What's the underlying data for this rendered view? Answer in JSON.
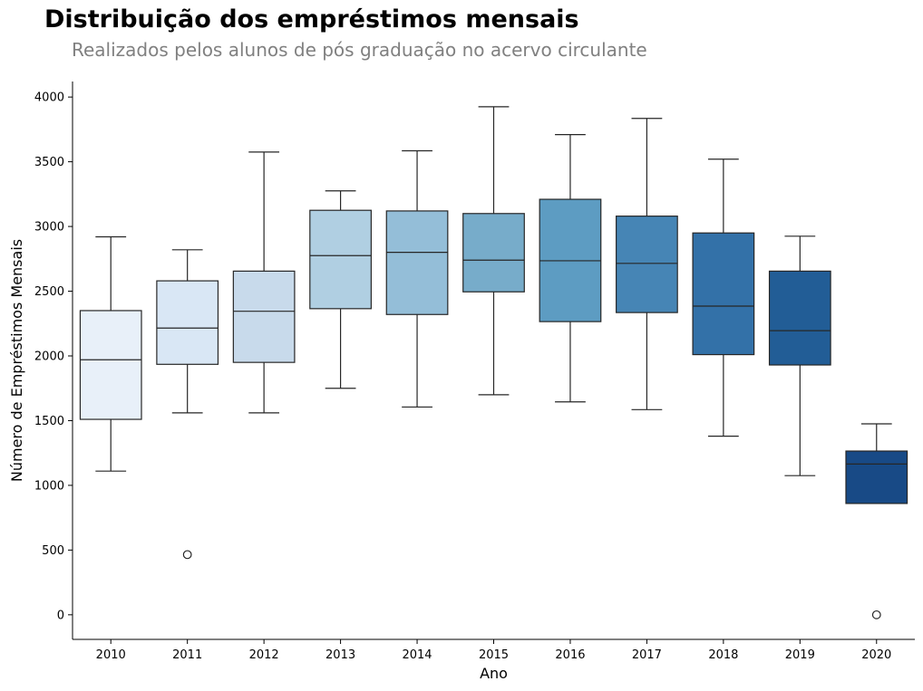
{
  "header": {
    "title": "Distribuição dos empréstimos mensais",
    "subtitle": "Realizados pelos alunos de pós graduação no acervo circulante"
  },
  "chart_data": {
    "type": "box",
    "xlabel": "Ano",
    "ylabel": "Número de Empréstimos Mensais",
    "ylim": [
      -190,
      4120
    ],
    "yticks": [
      0,
      500,
      1000,
      1500,
      2000,
      2500,
      3000,
      3500,
      4000
    ],
    "grid": false,
    "categories": [
      "2010",
      "2011",
      "2012",
      "2013",
      "2014",
      "2015",
      "2016",
      "2017",
      "2018",
      "2019",
      "2020"
    ],
    "boxes": [
      {
        "category": "2010",
        "whisker_low": 1110,
        "q1": 1510,
        "median": 1970,
        "q3": 2350,
        "whisker_high": 2920,
        "outliers": [],
        "color": "#e8f0f9"
      },
      {
        "category": "2011",
        "whisker_low": 1560,
        "q1": 1935,
        "median": 2215,
        "q3": 2580,
        "whisker_high": 2820,
        "outliers": [
          465
        ],
        "color": "#d9e7f5"
      },
      {
        "category": "2012",
        "whisker_low": 1560,
        "q1": 1950,
        "median": 2345,
        "q3": 2655,
        "whisker_high": 3575,
        "outliers": [],
        "color": "#c8daeb"
      },
      {
        "category": "2013",
        "whisker_low": 1750,
        "q1": 2365,
        "median": 2775,
        "q3": 3125,
        "whisker_high": 3275,
        "outliers": [],
        "color": "#b0cfe2"
      },
      {
        "category": "2014",
        "whisker_low": 1605,
        "q1": 2320,
        "median": 2800,
        "q3": 3120,
        "whisker_high": 3585,
        "outliers": [],
        "color": "#94bed8"
      },
      {
        "category": "2015",
        "whisker_low": 1700,
        "q1": 2495,
        "median": 2740,
        "q3": 3100,
        "whisker_high": 3925,
        "outliers": [],
        "color": "#77acca"
      },
      {
        "category": "2016",
        "whisker_low": 1645,
        "q1": 2265,
        "median": 2735,
        "q3": 3210,
        "whisker_high": 3710,
        "outliers": [],
        "color": "#5d9cc2"
      },
      {
        "category": "2017",
        "whisker_low": 1585,
        "q1": 2335,
        "median": 2715,
        "q3": 3080,
        "whisker_high": 3835,
        "outliers": [],
        "color": "#4685b5"
      },
      {
        "category": "2018",
        "whisker_low": 1380,
        "q1": 2010,
        "median": 2385,
        "q3": 2950,
        "whisker_high": 3520,
        "outliers": [],
        "color": "#3371a8"
      },
      {
        "category": "2019",
        "whisker_low": 1075,
        "q1": 1930,
        "median": 2195,
        "q3": 2655,
        "whisker_high": 2925,
        "outliers": [],
        "color": "#225d96"
      },
      {
        "category": "2020",
        "whisker_low": 860,
        "q1": 860,
        "median": 1165,
        "q3": 1265,
        "whisker_high": 1475,
        "outliers": [
          0
        ],
        "color": "#184a86"
      }
    ]
  }
}
